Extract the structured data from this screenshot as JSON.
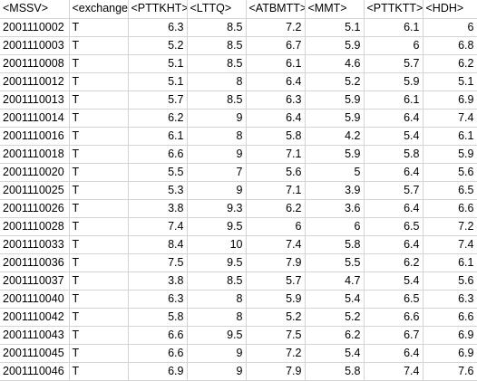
{
  "sheet": {
    "headers": [
      "<MSSV>",
      "<exchange",
      "<PTTKHT>",
      "<LTTQ>",
      "<ATBMTT>",
      "<MMT>",
      "<PTTKTT>",
      "<HDH>"
    ],
    "rows": [
      [
        "2001110002",
        "T",
        "6.3",
        "8.5",
        "7.2",
        "5.1",
        "6.1",
        "6"
      ],
      [
        "2001110003",
        "T",
        "5.2",
        "8.5",
        "6.7",
        "5.9",
        "6",
        "6.8"
      ],
      [
        "2001110008",
        "T",
        "5.1",
        "8.5",
        "6.1",
        "4.6",
        "5.7",
        "6.2"
      ],
      [
        "2001110012",
        "T",
        "5.1",
        "8",
        "6.4",
        "5.2",
        "5.9",
        "5.1"
      ],
      [
        "2001110013",
        "T",
        "5.7",
        "8.5",
        "6.3",
        "5.9",
        "6.1",
        "6.9"
      ],
      [
        "2001110014",
        "T",
        "6.2",
        "9",
        "6.4",
        "5.9",
        "6.4",
        "7.4"
      ],
      [
        "2001110016",
        "T",
        "6.1",
        "8",
        "5.8",
        "4.2",
        "5.4",
        "6.1"
      ],
      [
        "2001110018",
        "T",
        "6.6",
        "9",
        "7.1",
        "5.9",
        "5.8",
        "5.9"
      ],
      [
        "2001110020",
        "T",
        "5.5",
        "7",
        "5.6",
        "5",
        "6.4",
        "5.6"
      ],
      [
        "2001110025",
        "T",
        "5.3",
        "9",
        "7.1",
        "3.9",
        "5.7",
        "6.5"
      ],
      [
        "2001110026",
        "T",
        "3.8",
        "9.3",
        "6.2",
        "3.6",
        "6.4",
        "6.6"
      ],
      [
        "2001110028",
        "T",
        "7.4",
        "9.5",
        "6",
        "6",
        "6.5",
        "7.2"
      ],
      [
        "2001110033",
        "T",
        "8.4",
        "10",
        "7.4",
        "5.8",
        "6.4",
        "7.4"
      ],
      [
        "2001110036",
        "T",
        "7.5",
        "9.5",
        "7.9",
        "5.5",
        "6.2",
        "6.1"
      ],
      [
        "2001110037",
        "T",
        "3.8",
        "8.5",
        "5.7",
        "4.7",
        "5.4",
        "5.6"
      ],
      [
        "2001110040",
        "T",
        "6.3",
        "8",
        "5.9",
        "5.4",
        "6.5",
        "6.3"
      ],
      [
        "2001110042",
        "T",
        "5.8",
        "8",
        "5.2",
        "5.2",
        "6.6",
        "6.6"
      ],
      [
        "2001110043",
        "T",
        "6.6",
        "9.5",
        "7.5",
        "6.2",
        "6.7",
        "6.9"
      ],
      [
        "2001110045",
        "T",
        "6.6",
        "9",
        "7.2",
        "5.4",
        "6.4",
        "6.9"
      ],
      [
        "2001110046",
        "T",
        "6.9",
        "9",
        "7.9",
        "5.8",
        "7.4",
        "7.6"
      ]
    ]
  }
}
